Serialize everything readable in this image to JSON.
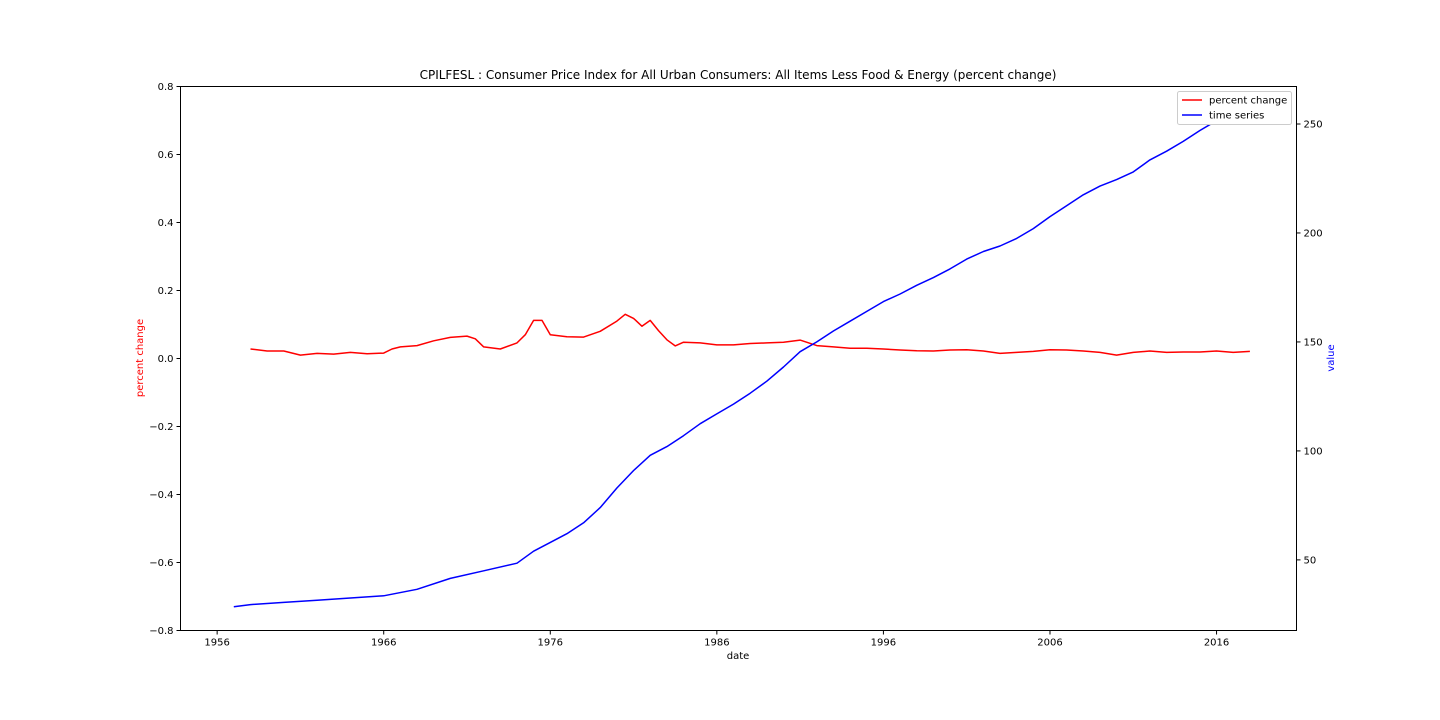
{
  "chart_data": {
    "type": "line",
    "title": "CPILFESL :  Consumer Price Index for All Urban Consumers: All Items Less Food & Energy (percent change)",
    "xlabel": "date",
    "ylabel_left": "percent change",
    "ylabel_right": "value",
    "xlim": [
      1953.8,
      2020.8
    ],
    "ylim_left": [
      -0.8,
      0.8
    ],
    "ylim_right": [
      17.6,
      267.2
    ],
    "x_ticks": [
      "1956",
      "1966",
      "1976",
      "1986",
      "1996",
      "2006",
      "2016"
    ],
    "y_ticks_left": [
      "0.8",
      "0.6",
      "0.4",
      "0.2",
      "0.0",
      "−0.2",
      "−0.4",
      "−0.6",
      "−0.8"
    ],
    "y_ticks_right": [
      "250",
      "200",
      "150",
      "100",
      "50"
    ],
    "grid": false,
    "legend_position": "upper-right",
    "colors": {
      "percent_change": "#ff0000",
      "time_series": "#0000ff",
      "left_label": "#ff0000",
      "right_label": "#0000ff"
    },
    "series": [
      {
        "name": "percent change",
        "axis": "left",
        "x": [
          1958.0,
          1959.0,
          1960.0,
          1961.0,
          1962.0,
          1963.0,
          1964.0,
          1965.0,
          1966.0,
          1966.5,
          1967.0,
          1968.0,
          1969.0,
          1970.0,
          1971.0,
          1971.5,
          1972.0,
          1973.0,
          1974.0,
          1974.5,
          1975.0,
          1975.5,
          1976.0,
          1977.0,
          1978.0,
          1979.0,
          1980.0,
          1980.5,
          1981.0,
          1981.5,
          1982.0,
          1982.5,
          1983.0,
          1983.5,
          1984.0,
          1985.0,
          1986.0,
          1987.0,
          1988.0,
          1989.0,
          1990.0,
          1991.0,
          1992.0,
          1993.0,
          1994.0,
          1995.0,
          1996.0,
          1997.0,
          1998.0,
          1999.0,
          2000.0,
          2001.0,
          2002.0,
          2003.0,
          2004.0,
          2005.0,
          2006.0,
          2007.0,
          2008.0,
          2009.0,
          2010.0,
          2011.0,
          2012.0,
          2013.0,
          2014.0,
          2015.0,
          2016.0,
          2017.0,
          2018.0
        ],
        "values": [
          0.028,
          0.022,
          0.022,
          0.01,
          0.015,
          0.013,
          0.018,
          0.014,
          0.016,
          0.028,
          0.034,
          0.038,
          0.052,
          0.062,
          0.066,
          0.058,
          0.034,
          0.028,
          0.046,
          0.07,
          0.112,
          0.112,
          0.07,
          0.064,
          0.063,
          0.08,
          0.11,
          0.13,
          0.118,
          0.095,
          0.112,
          0.082,
          0.055,
          0.037,
          0.048,
          0.046,
          0.04,
          0.04,
          0.044,
          0.046,
          0.048,
          0.054,
          0.038,
          0.034,
          0.03,
          0.03,
          0.028,
          0.025,
          0.023,
          0.022,
          0.025,
          0.026,
          0.022,
          0.015,
          0.018,
          0.021,
          0.026,
          0.025,
          0.022,
          0.018,
          0.01,
          0.018,
          0.022,
          0.018,
          0.019,
          0.019,
          0.022,
          0.018,
          0.021
        ]
      },
      {
        "name": "time series",
        "axis": "right",
        "x": [
          1957.0,
          1958.0,
          1960.0,
          1962.0,
          1964.0,
          1966.0,
          1968.0,
          1970.0,
          1972.0,
          1974.0,
          1975.0,
          1976.0,
          1977.0,
          1978.0,
          1979.0,
          1980.0,
          1981.0,
          1982.0,
          1983.0,
          1984.0,
          1985.0,
          1986.0,
          1987.0,
          1988.0,
          1989.0,
          1990.0,
          1991.0,
          1992.0,
          1993.0,
          1994.0,
          1995.0,
          1996.0,
          1997.0,
          1998.0,
          1999.0,
          2000.0,
          2001.0,
          2002.0,
          2003.0,
          2004.0,
          2005.0,
          2006.0,
          2007.0,
          2008.0,
          2009.0,
          2010.0,
          2011.0,
          2012.0,
          2013.0,
          2014.0,
          2015.0,
          2016.0,
          2017.0,
          2018.0
        ],
        "values": [
          28.5,
          29.5,
          30.5,
          31.5,
          32.5,
          33.5,
          36.5,
          41.5,
          45.0,
          48.5,
          54.0,
          58.0,
          62.0,
          67.0,
          74.0,
          83.0,
          91.0,
          98.0,
          102.0,
          107.0,
          112.5,
          117.0,
          121.5,
          126.5,
          132.0,
          138.5,
          145.5,
          150.0,
          155.0,
          159.5,
          164.0,
          168.5,
          172.0,
          176.0,
          179.5,
          183.5,
          188.0,
          191.5,
          194.0,
          197.5,
          202.0,
          207.5,
          212.5,
          217.5,
          221.5,
          224.5,
          228.0,
          233.5,
          237.5,
          242.0,
          247.0,
          251.5,
          255.5,
          260.0
        ]
      }
    ]
  }
}
